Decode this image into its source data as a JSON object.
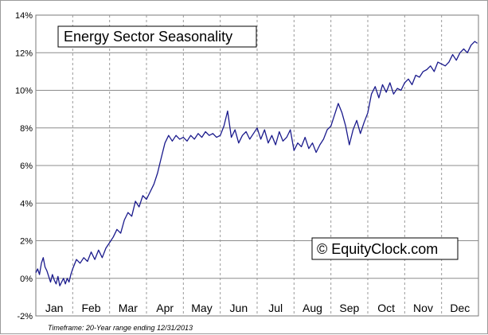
{
  "chart_data": {
    "type": "line",
    "title": "Energy Sector Seasonality",
    "credit": "© EquityClock.com",
    "footnote": "Timeframe: 20-Year range ending 12/31/2013",
    "ylim": [
      -2,
      14
    ],
    "yticks": [
      -2,
      0,
      2,
      4,
      6,
      8,
      10,
      12,
      14
    ],
    "ytick_labels": [
      "-2%",
      "0%",
      "2%",
      "4%",
      "6%",
      "8%",
      "10%",
      "12%",
      "14%"
    ],
    "months": [
      "Jan",
      "Feb",
      "Mar",
      "Apr",
      "May",
      "Jun",
      "Jul",
      "Aug",
      "Sep",
      "Oct",
      "Nov",
      "Dec"
    ],
    "grid": {
      "horizontal": "solid",
      "vertical": "dashed"
    },
    "line_color": "#1a1a8c",
    "series": [
      {
        "x": [
          0.0,
          0.05,
          0.1,
          0.15,
          0.2,
          0.25,
          0.3,
          0.35,
          0.4,
          0.45,
          0.5,
          0.55,
          0.6,
          0.65,
          0.7,
          0.75,
          0.8,
          0.85,
          0.9,
          0.95,
          1.0,
          1.1,
          1.2,
          1.3,
          1.4,
          1.5,
          1.6,
          1.7,
          1.8,
          1.9,
          2.0,
          2.1,
          2.2,
          2.3,
          2.4,
          2.5,
          2.6,
          2.7,
          2.8,
          2.9,
          3.0,
          3.1,
          3.2,
          3.3,
          3.4,
          3.5,
          3.6,
          3.7,
          3.8,
          3.9,
          4.0,
          4.1,
          4.2,
          4.3,
          4.4,
          4.5,
          4.6,
          4.7,
          4.8,
          4.9,
          5.0,
          5.1,
          5.2,
          5.3,
          5.4,
          5.5,
          5.6,
          5.7,
          5.8,
          5.9,
          6.0,
          6.1,
          6.2,
          6.3,
          6.4,
          6.5,
          6.6,
          6.7,
          6.8,
          6.9,
          7.0,
          7.1,
          7.2,
          7.3,
          7.4,
          7.5,
          7.6,
          7.7,
          7.8,
          7.9,
          8.0,
          8.1,
          8.2,
          8.3,
          8.4,
          8.5,
          8.6,
          8.7,
          8.8,
          8.9,
          9.0,
          9.1,
          9.2,
          9.3,
          9.4,
          9.5,
          9.6,
          9.7,
          9.8,
          9.9,
          10.0,
          10.1,
          10.2,
          10.3,
          10.4,
          10.5,
          10.6,
          10.7,
          10.8,
          10.9,
          11.0,
          11.1,
          11.2,
          11.3,
          11.4,
          11.5,
          11.6,
          11.7,
          11.8,
          11.9,
          11.97
        ],
        "y": [
          0.3,
          0.5,
          0.2,
          0.8,
          1.1,
          0.6,
          0.4,
          0.1,
          -0.2,
          0.2,
          -0.1,
          -0.3,
          0.1,
          -0.4,
          -0.2,
          0.0,
          -0.3,
          0.0,
          -0.2,
          0.2,
          0.5,
          1.0,
          0.8,
          1.1,
          0.9,
          1.4,
          1.0,
          1.5,
          1.1,
          1.6,
          1.9,
          2.2,
          2.6,
          2.4,
          3.1,
          3.5,
          3.3,
          4.1,
          3.8,
          4.4,
          4.2,
          4.6,
          5.0,
          5.6,
          6.4,
          7.2,
          7.6,
          7.3,
          7.6,
          7.4,
          7.5,
          7.3,
          7.6,
          7.4,
          7.7,
          7.5,
          7.8,
          7.6,
          7.7,
          7.5,
          7.6,
          8.1,
          8.9,
          7.5,
          7.9,
          7.2,
          7.6,
          7.8,
          7.4,
          7.7,
          8.0,
          7.4,
          7.9,
          7.2,
          7.6,
          7.1,
          7.8,
          7.3,
          7.5,
          7.9,
          6.8,
          7.2,
          7.0,
          7.5,
          6.9,
          7.2,
          6.7,
          7.1,
          7.4,
          7.9,
          8.1,
          8.7,
          9.3,
          8.8,
          8.1,
          7.1,
          7.9,
          8.4,
          7.7,
          8.3,
          8.8,
          9.8,
          10.2,
          9.6,
          10.3,
          9.9,
          10.4,
          9.8,
          10.1,
          10.0,
          10.4,
          10.6,
          10.3,
          10.8,
          10.7,
          11.0,
          11.1,
          11.3,
          11.0,
          11.5,
          11.4,
          11.3,
          11.5,
          11.9,
          11.6,
          12.0,
          12.2,
          12.0,
          12.4,
          12.6,
          12.5
        ]
      }
    ]
  }
}
